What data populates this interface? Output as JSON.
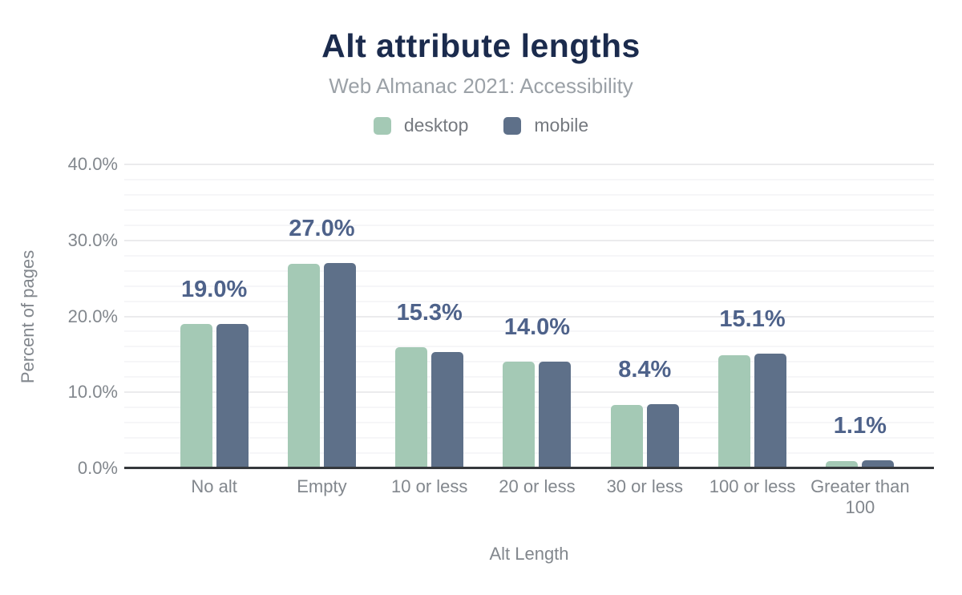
{
  "header": {
    "title": "Alt attribute lengths",
    "subtitle": "Web Almanac 2021: Accessibility"
  },
  "chart_data": {
    "type": "bar",
    "categories": [
      "No alt",
      "Empty",
      "10 or less",
      "20 or less",
      "30 or less",
      "100 or less",
      "Greater than 100"
    ],
    "series": [
      {
        "name": "desktop",
        "color": "#a4c9b5",
        "values": [
          19.0,
          26.9,
          15.9,
          14.0,
          8.3,
          14.9,
          1.0
        ]
      },
      {
        "name": "mobile",
        "color": "#5e7089",
        "values": [
          19.0,
          27.0,
          15.3,
          14.0,
          8.4,
          15.1,
          1.1
        ]
      }
    ],
    "data_labels": [
      "19.0%",
      "27.0%",
      "15.3%",
      "14.0%",
      "8.4%",
      "15.1%",
      "1.1%"
    ],
    "title": "Alt attribute lengths",
    "subtitle": "Web Almanac 2021: Accessibility",
    "xlabel": "Alt Length",
    "ylabel": "Percent of pages",
    "ylim": [
      0,
      40
    ],
    "yticks": [
      "0.0%",
      "10.0%",
      "20.0%",
      "30.0%",
      "40.0%"
    ],
    "grid": {
      "major_step": 10,
      "minor_step": 2
    },
    "legend_position": "top"
  },
  "colors": {
    "title": "#1b2b4d",
    "subtitle": "#9ba1a7",
    "axis_text": "#82878d",
    "data_label": "#4e628a",
    "major_grid": "#ebebed",
    "minor_grid": "#f6f6f8",
    "axis_line": "#35383c",
    "background": "#ffffff"
  }
}
